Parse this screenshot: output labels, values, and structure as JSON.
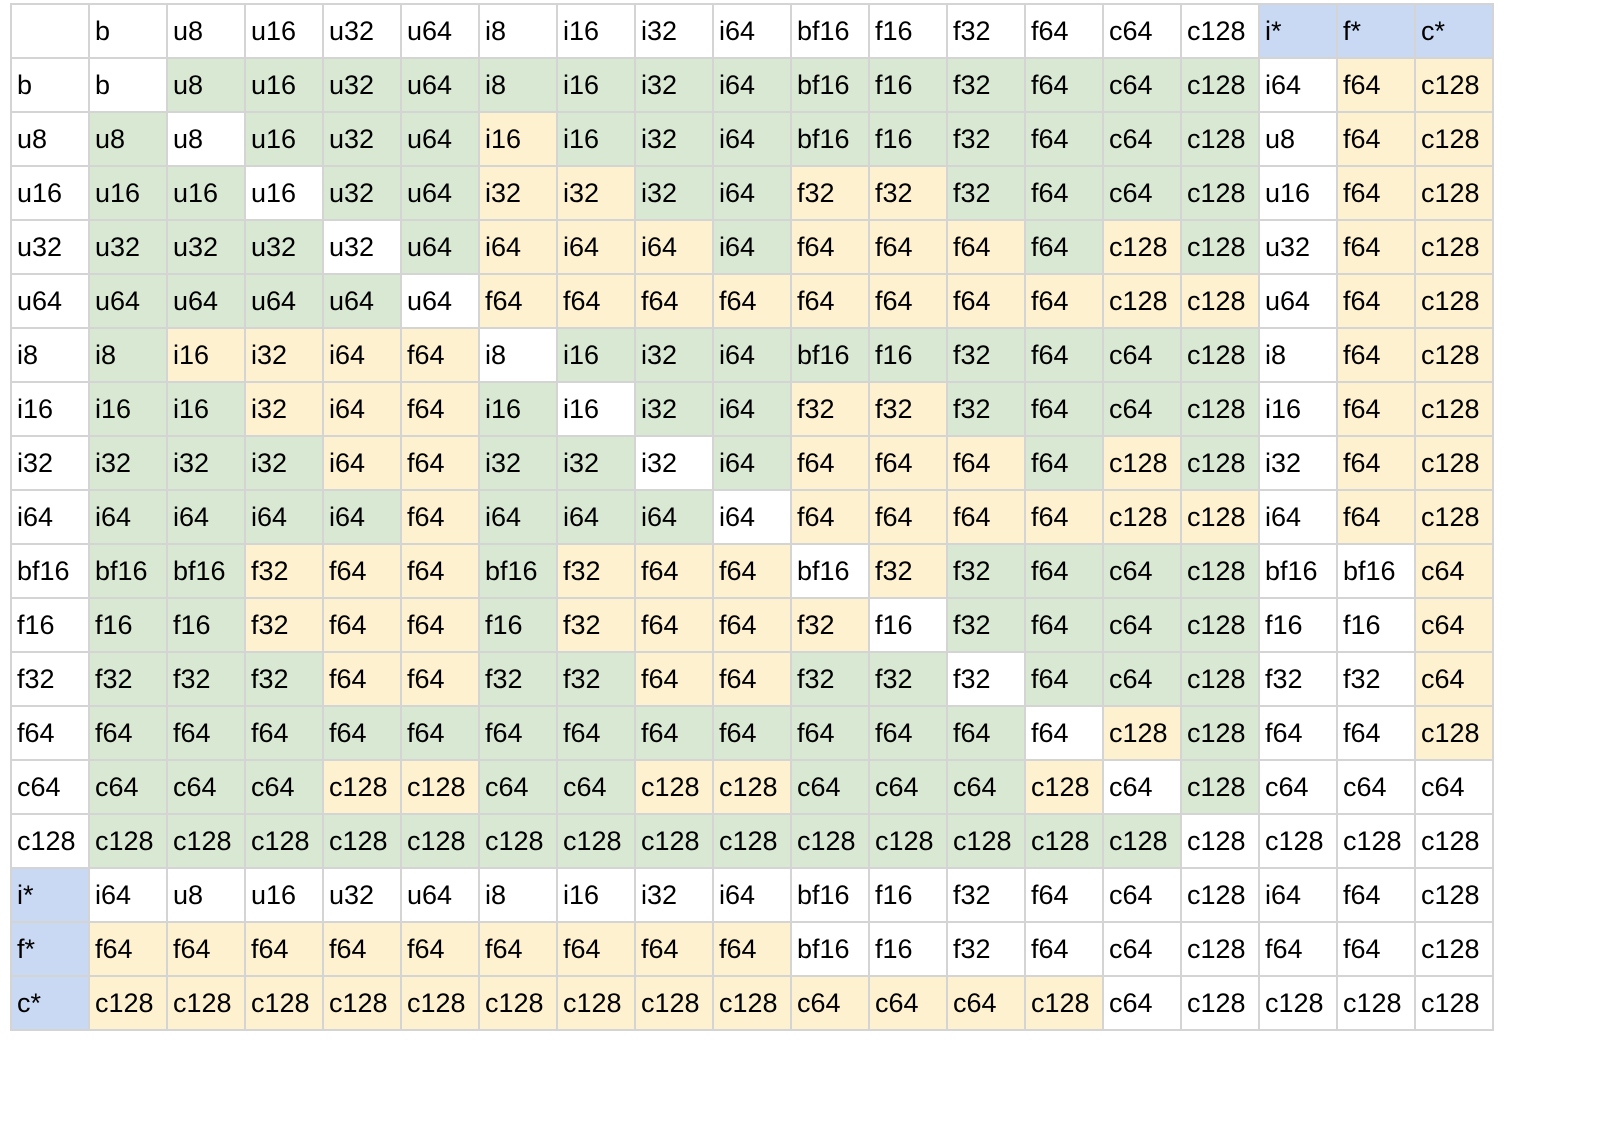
{
  "colors": {
    "w": "#ffffff",
    "g": "#d9e8d3",
    "y": "#fdf1cf",
    "b": "#c9d9f4"
  },
  "header": [
    {
      "t": "",
      "c": "w"
    },
    {
      "t": "b",
      "c": "w"
    },
    {
      "t": "u8",
      "c": "w"
    },
    {
      "t": "u16",
      "c": "w"
    },
    {
      "t": "u32",
      "c": "w"
    },
    {
      "t": "u64",
      "c": "w"
    },
    {
      "t": "i8",
      "c": "w"
    },
    {
      "t": "i16",
      "c": "w"
    },
    {
      "t": "i32",
      "c": "w"
    },
    {
      "t": "i64",
      "c": "w"
    },
    {
      "t": "bf16",
      "c": "w"
    },
    {
      "t": "f16",
      "c": "w"
    },
    {
      "t": "f32",
      "c": "w"
    },
    {
      "t": "f64",
      "c": "w"
    },
    {
      "t": "c64",
      "c": "w"
    },
    {
      "t": "c128",
      "c": "w"
    },
    {
      "t": "i*",
      "c": "b"
    },
    {
      "t": "f*",
      "c": "b"
    },
    {
      "t": "c*",
      "c": "b"
    }
  ],
  "rows": [
    {
      "label": "b",
      "lc": "w",
      "cells": [
        "b",
        "u8",
        "u16",
        "u32",
        "u64",
        "i8",
        "i16",
        "i32",
        "i64",
        "bf16",
        "f16",
        "f32",
        "f64",
        "c64",
        "c128",
        "i64",
        "f64",
        "c128"
      ],
      "colors": [
        "w",
        "g",
        "g",
        "g",
        "g",
        "g",
        "g",
        "g",
        "g",
        "g",
        "g",
        "g",
        "g",
        "g",
        "g",
        "w",
        "y",
        "y"
      ]
    },
    {
      "label": "u8",
      "lc": "w",
      "cells": [
        "u8",
        "u8",
        "u16",
        "u32",
        "u64",
        "i16",
        "i16",
        "i32",
        "i64",
        "bf16",
        "f16",
        "f32",
        "f64",
        "c64",
        "c128",
        "u8",
        "f64",
        "c128"
      ],
      "colors": [
        "g",
        "w",
        "g",
        "g",
        "g",
        "y",
        "g",
        "g",
        "g",
        "g",
        "g",
        "g",
        "g",
        "g",
        "g",
        "w",
        "y",
        "y"
      ]
    },
    {
      "label": "u16",
      "lc": "w",
      "cells": [
        "u16",
        "u16",
        "u16",
        "u32",
        "u64",
        "i32",
        "i32",
        "i32",
        "i64",
        "f32",
        "f32",
        "f32",
        "f64",
        "c64",
        "c128",
        "u16",
        "f64",
        "c128"
      ],
      "colors": [
        "g",
        "g",
        "w",
        "g",
        "g",
        "y",
        "y",
        "g",
        "g",
        "y",
        "y",
        "g",
        "g",
        "g",
        "g",
        "w",
        "y",
        "y"
      ]
    },
    {
      "label": "u32",
      "lc": "w",
      "cells": [
        "u32",
        "u32",
        "u32",
        "u32",
        "u64",
        "i64",
        "i64",
        "i64",
        "i64",
        "f64",
        "f64",
        "f64",
        "f64",
        "c128",
        "c128",
        "u32",
        "f64",
        "c128"
      ],
      "colors": [
        "g",
        "g",
        "g",
        "w",
        "g",
        "y",
        "y",
        "y",
        "g",
        "y",
        "y",
        "y",
        "g",
        "y",
        "g",
        "w",
        "y",
        "y"
      ]
    },
    {
      "label": "u64",
      "lc": "w",
      "cells": [
        "u64",
        "u64",
        "u64",
        "u64",
        "u64",
        "f64",
        "f64",
        "f64",
        "f64",
        "f64",
        "f64",
        "f64",
        "f64",
        "c128",
        "c128",
        "u64",
        "f64",
        "c128"
      ],
      "colors": [
        "g",
        "g",
        "g",
        "g",
        "w",
        "y",
        "y",
        "y",
        "y",
        "y",
        "y",
        "y",
        "y",
        "y",
        "y",
        "w",
        "y",
        "y"
      ]
    },
    {
      "label": "i8",
      "lc": "w",
      "cells": [
        "i8",
        "i16",
        "i32",
        "i64",
        "f64",
        "i8",
        "i16",
        "i32",
        "i64",
        "bf16",
        "f16",
        "f32",
        "f64",
        "c64",
        "c128",
        "i8",
        "f64",
        "c128"
      ],
      "colors": [
        "g",
        "y",
        "y",
        "y",
        "y",
        "w",
        "g",
        "g",
        "g",
        "g",
        "g",
        "g",
        "g",
        "g",
        "g",
        "w",
        "y",
        "y"
      ]
    },
    {
      "label": "i16",
      "lc": "w",
      "cells": [
        "i16",
        "i16",
        "i32",
        "i64",
        "f64",
        "i16",
        "i16",
        "i32",
        "i64",
        "f32",
        "f32",
        "f32",
        "f64",
        "c64",
        "c128",
        "i16",
        "f64",
        "c128"
      ],
      "colors": [
        "g",
        "g",
        "y",
        "y",
        "y",
        "g",
        "w",
        "g",
        "g",
        "y",
        "y",
        "g",
        "g",
        "g",
        "g",
        "w",
        "y",
        "y"
      ]
    },
    {
      "label": "i32",
      "lc": "w",
      "cells": [
        "i32",
        "i32",
        "i32",
        "i64",
        "f64",
        "i32",
        "i32",
        "i32",
        "i64",
        "f64",
        "f64",
        "f64",
        "f64",
        "c128",
        "c128",
        "i32",
        "f64",
        "c128"
      ],
      "colors": [
        "g",
        "g",
        "g",
        "y",
        "y",
        "g",
        "g",
        "w",
        "g",
        "y",
        "y",
        "y",
        "g",
        "y",
        "g",
        "w",
        "y",
        "y"
      ]
    },
    {
      "label": "i64",
      "lc": "w",
      "cells": [
        "i64",
        "i64",
        "i64",
        "i64",
        "f64",
        "i64",
        "i64",
        "i64",
        "i64",
        "f64",
        "f64",
        "f64",
        "f64",
        "c128",
        "c128",
        "i64",
        "f64",
        "c128"
      ],
      "colors": [
        "g",
        "g",
        "g",
        "g",
        "y",
        "g",
        "g",
        "g",
        "w",
        "y",
        "y",
        "y",
        "y",
        "y",
        "y",
        "w",
        "y",
        "y"
      ]
    },
    {
      "label": "bf16",
      "lc": "w",
      "cells": [
        "bf16",
        "bf16",
        "f32",
        "f64",
        "f64",
        "bf16",
        "f32",
        "f64",
        "f64",
        "bf16",
        "f32",
        "f32",
        "f64",
        "c64",
        "c128",
        "bf16",
        "bf16",
        "c64"
      ],
      "colors": [
        "g",
        "g",
        "y",
        "y",
        "y",
        "g",
        "y",
        "y",
        "y",
        "w",
        "y",
        "g",
        "g",
        "g",
        "g",
        "w",
        "w",
        "y"
      ]
    },
    {
      "label": "f16",
      "lc": "w",
      "cells": [
        "f16",
        "f16",
        "f32",
        "f64",
        "f64",
        "f16",
        "f32",
        "f64",
        "f64",
        "f32",
        "f16",
        "f32",
        "f64",
        "c64",
        "c128",
        "f16",
        "f16",
        "c64"
      ],
      "colors": [
        "g",
        "g",
        "y",
        "y",
        "y",
        "g",
        "y",
        "y",
        "y",
        "y",
        "w",
        "g",
        "g",
        "g",
        "g",
        "w",
        "w",
        "y"
      ]
    },
    {
      "label": "f32",
      "lc": "w",
      "cells": [
        "f32",
        "f32",
        "f32",
        "f64",
        "f64",
        "f32",
        "f32",
        "f64",
        "f64",
        "f32",
        "f32",
        "f32",
        "f64",
        "c64",
        "c128",
        "f32",
        "f32",
        "c64"
      ],
      "colors": [
        "g",
        "g",
        "g",
        "y",
        "y",
        "g",
        "g",
        "y",
        "y",
        "g",
        "g",
        "w",
        "g",
        "g",
        "g",
        "w",
        "w",
        "y"
      ]
    },
    {
      "label": "f64",
      "lc": "w",
      "cells": [
        "f64",
        "f64",
        "f64",
        "f64",
        "f64",
        "f64",
        "f64",
        "f64",
        "f64",
        "f64",
        "f64",
        "f64",
        "f64",
        "c128",
        "c128",
        "f64",
        "f64",
        "c128"
      ],
      "colors": [
        "g",
        "g",
        "g",
        "g",
        "g",
        "g",
        "g",
        "g",
        "g",
        "g",
        "g",
        "g",
        "w",
        "y",
        "g",
        "w",
        "w",
        "y"
      ]
    },
    {
      "label": "c64",
      "lc": "w",
      "cells": [
        "c64",
        "c64",
        "c64",
        "c128",
        "c128",
        "c64",
        "c64",
        "c128",
        "c128",
        "c64",
        "c64",
        "c64",
        "c128",
        "c64",
        "c128",
        "c64",
        "c64",
        "c64"
      ],
      "colors": [
        "g",
        "g",
        "g",
        "y",
        "y",
        "g",
        "g",
        "y",
        "y",
        "g",
        "g",
        "g",
        "y",
        "w",
        "g",
        "w",
        "w",
        "w"
      ]
    },
    {
      "label": "c128",
      "lc": "w",
      "cells": [
        "c128",
        "c128",
        "c128",
        "c128",
        "c128",
        "c128",
        "c128",
        "c128",
        "c128",
        "c128",
        "c128",
        "c128",
        "c128",
        "c128",
        "c128",
        "c128",
        "c128",
        "c128"
      ],
      "colors": [
        "g",
        "g",
        "g",
        "g",
        "g",
        "g",
        "g",
        "g",
        "g",
        "g",
        "g",
        "g",
        "g",
        "g",
        "w",
        "w",
        "w",
        "w"
      ]
    },
    {
      "label": "i*",
      "lc": "b",
      "cells": [
        "i64",
        "u8",
        "u16",
        "u32",
        "u64",
        "i8",
        "i16",
        "i32",
        "i64",
        "bf16",
        "f16",
        "f32",
        "f64",
        "c64",
        "c128",
        "i64",
        "f64",
        "c128"
      ],
      "colors": [
        "w",
        "w",
        "w",
        "w",
        "w",
        "w",
        "w",
        "w",
        "w",
        "w",
        "w",
        "w",
        "w",
        "w",
        "w",
        "w",
        "w",
        "w"
      ]
    },
    {
      "label": "f*",
      "lc": "b",
      "cells": [
        "f64",
        "f64",
        "f64",
        "f64",
        "f64",
        "f64",
        "f64",
        "f64",
        "f64",
        "bf16",
        "f16",
        "f32",
        "f64",
        "c64",
        "c128",
        "f64",
        "f64",
        "c128"
      ],
      "colors": [
        "y",
        "y",
        "y",
        "y",
        "y",
        "y",
        "y",
        "y",
        "y",
        "w",
        "w",
        "w",
        "w",
        "w",
        "w",
        "w",
        "w",
        "w"
      ]
    },
    {
      "label": "c*",
      "lc": "b",
      "cells": [
        "c128",
        "c128",
        "c128",
        "c128",
        "c128",
        "c128",
        "c128",
        "c128",
        "c128",
        "c64",
        "c64",
        "c64",
        "c128",
        "c64",
        "c128",
        "c128",
        "c128",
        "c128"
      ],
      "colors": [
        "y",
        "y",
        "y",
        "y",
        "y",
        "y",
        "y",
        "y",
        "y",
        "y",
        "y",
        "y",
        "y",
        "w",
        "w",
        "w",
        "w",
        "w"
      ]
    }
  ]
}
